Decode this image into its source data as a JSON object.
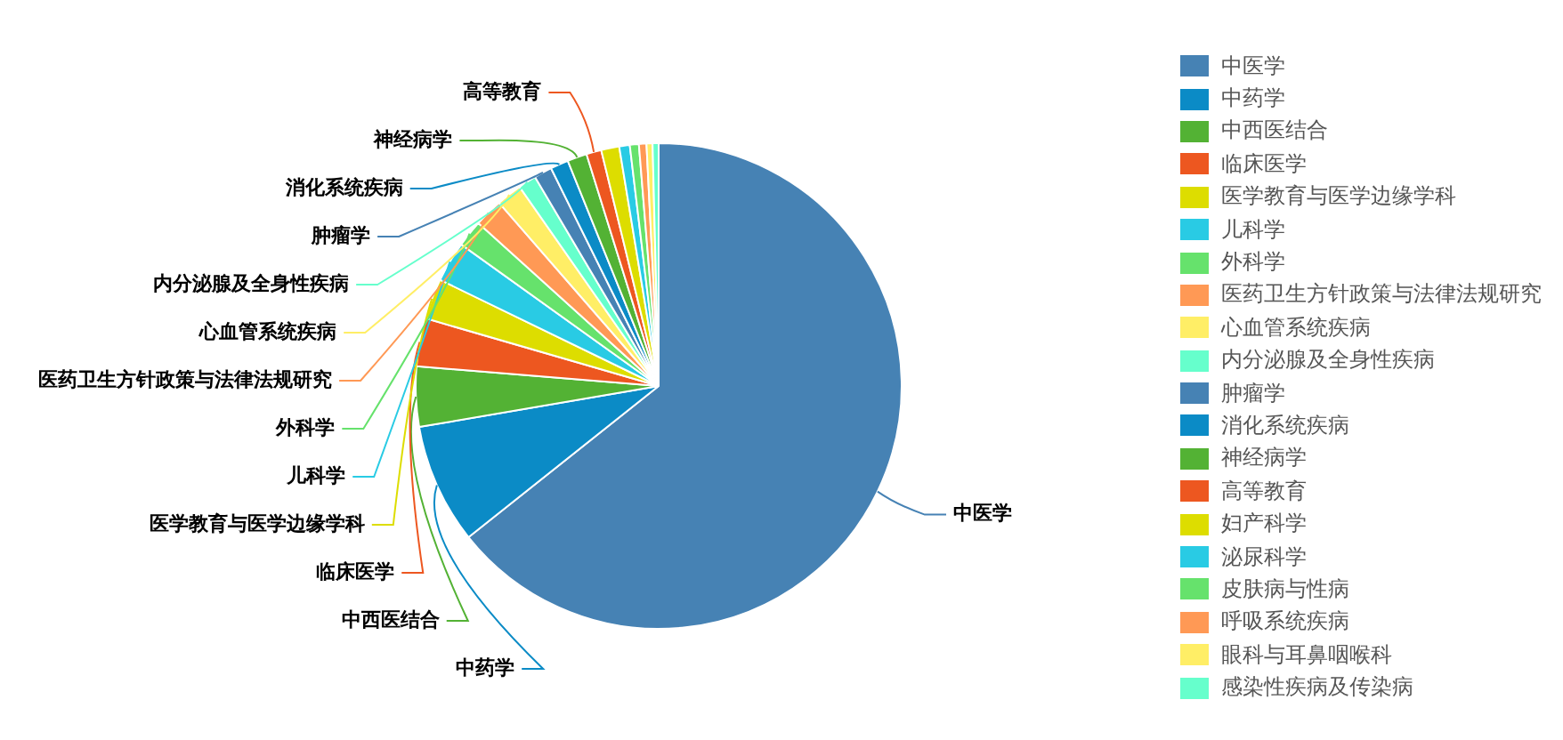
{
  "chart_data": {
    "type": "pie",
    "categories": [
      "中医学",
      "中药学",
      "中西医结合",
      "临床医学",
      "医学教育与医学边缘学科",
      "儿科学",
      "外科学",
      "医药卫生方针政策与法律法规研究",
      "心血管系统疾病",
      "内分泌腺及全身性疾病",
      "肿瘤学",
      "消化系统疾病",
      "神经病学",
      "高等教育",
      "妇产科学",
      "泌尿科学",
      "皮肤病与性病",
      "呼吸系统疾病",
      "眼科与耳鼻咽喉科",
      "感染性疾病及传染病"
    ],
    "values": [
      64.3,
      8,
      4,
      3.2,
      2.7,
      2.7,
      1.8,
      1.9,
      1.7,
      1.2,
      1.2,
      1.2,
      1.3,
      1,
      1.2,
      0.7,
      0.6,
      0.5,
      0.4,
      0.4
    ],
    "colors": [
      "#4682b4",
      "#0b8bc6",
      "#53b234",
      "#ed5720",
      "#dddd00",
      "#29cbe4",
      "#66e26c",
      "#ff9955",
      "#ffee66",
      "#66ffcc",
      "#4682b4",
      "#0b8bc6",
      "#53b234",
      "#ed5720",
      "#dddd00",
      "#29cbe4",
      "#66e26c",
      "#ff9955",
      "#ffee66",
      "#66ffcc"
    ],
    "legend": "right"
  }
}
